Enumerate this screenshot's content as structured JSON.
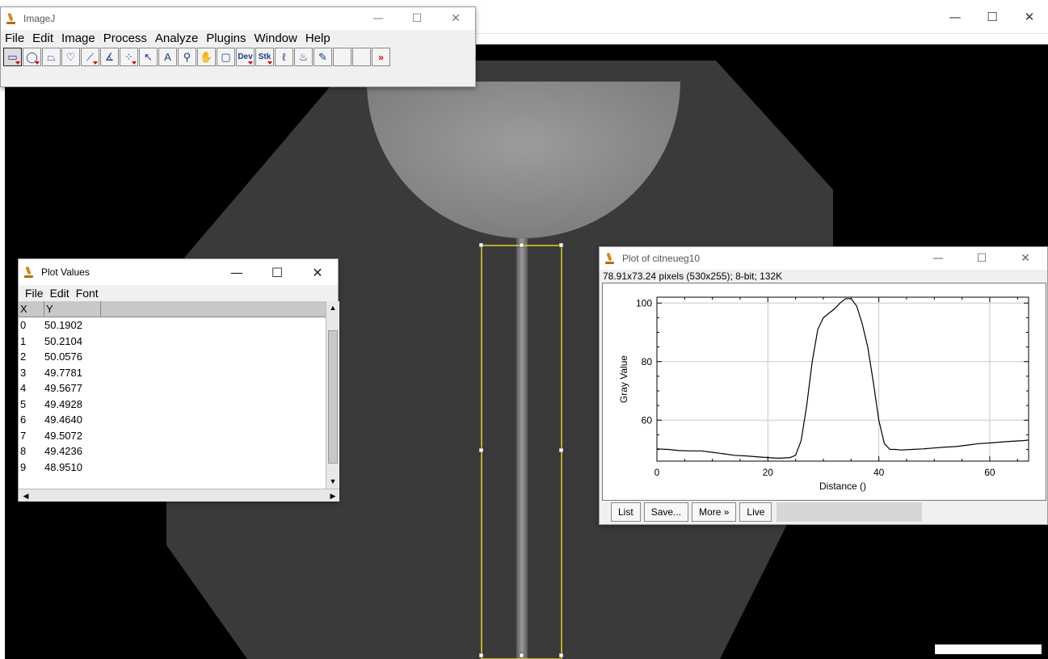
{
  "imagej": {
    "title": "ImageJ",
    "menu": [
      "File",
      "Edit",
      "Image",
      "Process",
      "Analyze",
      "Plugins",
      "Window",
      "Help"
    ],
    "tools": [
      {
        "name": "rectangle-tool-icon",
        "glyph": "▭",
        "selected": true,
        "dropdown": true
      },
      {
        "name": "oval-tool-icon",
        "glyph": "◯",
        "dropdown": true
      },
      {
        "name": "polygon-tool-icon",
        "glyph": "⏢"
      },
      {
        "name": "freehand-tool-icon",
        "glyph": "♡"
      },
      {
        "name": "line-tool-icon",
        "glyph": "⟋",
        "dropdown": true
      },
      {
        "name": "angle-tool-icon",
        "glyph": "∡"
      },
      {
        "name": "point-tool-icon",
        "glyph": "⁘",
        "dropdown": true
      },
      {
        "name": "wand-tool-icon",
        "glyph": "↖"
      },
      {
        "name": "text-tool-icon",
        "glyph": "A"
      },
      {
        "name": "magnifier-tool-icon",
        "glyph": "⚲"
      },
      {
        "name": "hand-tool-icon",
        "glyph": "✋"
      },
      {
        "name": "color-picker-tool-icon",
        "glyph": "▢"
      },
      {
        "name": "dev-menu-tool",
        "label": "Dev",
        "dropdown": true
      },
      {
        "name": "stk-menu-tool",
        "label": "Stk",
        "dropdown": true
      },
      {
        "name": "brush-tool-icon",
        "glyph": "ℓ"
      },
      {
        "name": "flood-fill-tool-icon",
        "glyph": "♨"
      },
      {
        "name": "pencil-tool-icon",
        "glyph": "✎"
      },
      {
        "name": "empty-tool-1",
        "glyph": ""
      },
      {
        "name": "empty-tool-2",
        "glyph": ""
      },
      {
        "name": "more-tools-icon",
        "glyph": "»"
      }
    ]
  },
  "plot_values": {
    "title": "Plot Values",
    "menu": [
      "File",
      "Edit",
      "Font"
    ],
    "columns": [
      "X",
      "Y"
    ],
    "rows": [
      [
        "0",
        "50.1902"
      ],
      [
        "1",
        "50.2104"
      ],
      [
        "2",
        "50.0576"
      ],
      [
        "3",
        "49.7781"
      ],
      [
        "4",
        "49.5677"
      ],
      [
        "5",
        "49.4928"
      ],
      [
        "6",
        "49.4640"
      ],
      [
        "7",
        "49.5072"
      ],
      [
        "8",
        "49.4236"
      ],
      [
        "9",
        "48.9510"
      ]
    ]
  },
  "plot": {
    "title": "Plot of citneueg10",
    "info": "78.91x73.24 pixels (530x255); 8-bit; 132K",
    "buttons": [
      "List",
      "Save...",
      "More »",
      "Live"
    ]
  },
  "chart_data": {
    "type": "line",
    "xlabel": "Distance ()",
    "ylabel": "Gray Value",
    "xlim": [
      0,
      67
    ],
    "ylim": [
      46,
      102
    ],
    "xticks": [
      0,
      20,
      40,
      60
    ],
    "yticks": [
      60,
      80,
      100
    ],
    "grid": true,
    "x": [
      0,
      2,
      4,
      6,
      8,
      10,
      12,
      14,
      16,
      18,
      20,
      22,
      24,
      25,
      26,
      27,
      28,
      29,
      30,
      31,
      32,
      33,
      34,
      35,
      36,
      37,
      38,
      39,
      40,
      41,
      42,
      43,
      44,
      46,
      48,
      50,
      52,
      54,
      56,
      58,
      60,
      62,
      64,
      66,
      67
    ],
    "y": [
      50.2,
      50.0,
      49.6,
      49.5,
      49.5,
      49.0,
      48.5,
      48.0,
      47.8,
      47.5,
      47.2,
      47.0,
      47.2,
      48,
      53,
      65,
      80,
      91,
      95,
      96.5,
      98,
      100,
      101.5,
      101.5,
      99,
      93,
      85,
      73,
      60,
      52,
      50,
      50,
      49.8,
      50,
      50.2,
      50.5,
      50.8,
      51,
      51.5,
      52,
      52.2,
      52.5,
      52.8,
      53,
      53.2
    ]
  }
}
